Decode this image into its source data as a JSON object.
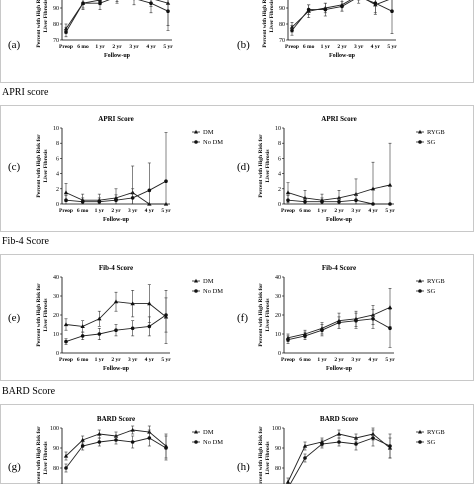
{
  "sections": [
    {
      "label": ""
    },
    {
      "label": "APRI score"
    },
    {
      "label": "Fib-4 Score"
    },
    {
      "label": "BARD Score"
    }
  ],
  "panel_common": {
    "xlabel": "Follow-up",
    "ylabel_line1": "Percent with High Risk for",
    "ylabel_line2": "Liver Fibrosis",
    "categories": [
      "Preop",
      "6 mo",
      "1 yr",
      "2 yr",
      "3 yr",
      "4 yr",
      "5 yr"
    ]
  },
  "chart_data": [
    {
      "letter": "(a)",
      "type": "line",
      "title": "",
      "xlabel": "Follow-up",
      "ylabel": "Percent with High Risk for Liver Fibrosis",
      "categories": [
        "Preop",
        "6 mo",
        "1 yr",
        "2 yr",
        "3 yr",
        "4 yr",
        "5 yr"
      ],
      "ylim": [
        70,
        100
      ],
      "yticks": [
        70,
        80,
        90,
        100
      ],
      "legend": [],
      "series": [
        {
          "marker": "triangle",
          "values": [
            77,
            93,
            95,
            97,
            99,
            96,
            93
          ],
          "err": [
            3,
            4,
            3,
            4,
            3,
            5,
            14
          ]
        },
        {
          "marker": "circle",
          "values": [
            75,
            93,
            93,
            97,
            96,
            93,
            88
          ],
          "err": [
            3,
            3,
            4,
            3,
            4,
            6,
            12
          ]
        }
      ]
    },
    {
      "letter": "(b)",
      "type": "line",
      "title": "",
      "xlabel": "Follow-up",
      "ylabel": "Percent with High Risk for Liver Fibrosis",
      "categories": [
        "Preop",
        "6 mo",
        "1 yr",
        "2 yr",
        "3 yr",
        "4 yr",
        "5 yr"
      ],
      "ylim": [
        70,
        100
      ],
      "yticks": [
        70,
        80,
        90,
        100
      ],
      "legend": [],
      "series": [
        {
          "marker": "triangle",
          "values": [
            78,
            88,
            90,
            92,
            98,
            92,
            96
          ],
          "err": [
            3,
            4,
            3,
            4,
            3,
            6,
            8
          ]
        },
        {
          "marker": "circle",
          "values": [
            76,
            89,
            89,
            91,
            97,
            93,
            88
          ],
          "err": [
            3,
            3,
            4,
            3,
            4,
            6,
            14
          ]
        }
      ]
    },
    {
      "letter": "(c)",
      "type": "line",
      "title": "APRI Score",
      "xlabel": "Follow-up",
      "ylabel": "Percent with High Risk for Liver Fibrosis",
      "categories": [
        "Preop",
        "6 mo",
        "1 yr",
        "2 yr",
        "3 yr",
        "4 yr",
        "5 yr"
      ],
      "ylim": [
        0,
        10
      ],
      "yticks": [
        0,
        2,
        4,
        6,
        8,
        10
      ],
      "legend": [
        "DM",
        "No DM"
      ],
      "series": [
        {
          "name": "DM",
          "marker": "triangle",
          "values": [
            1.5,
            0.5,
            0.5,
            0.8,
            1.5,
            0,
            0
          ],
          "err": [
            1.2,
            0.8,
            0.8,
            1.2,
            3.5,
            0,
            0
          ]
        },
        {
          "name": "No DM",
          "marker": "circle",
          "values": [
            0.5,
            0.3,
            0.3,
            0.5,
            0.8,
            1.8,
            3
          ],
          "err": [
            0.6,
            0.5,
            0.5,
            0.7,
            1.2,
            3.6,
            6.4
          ]
        }
      ]
    },
    {
      "letter": "(d)",
      "type": "line",
      "title": "APRI Score",
      "xlabel": "Follow-up",
      "ylabel": "Percent with High Risk for Liver Fibrosis",
      "categories": [
        "Preop",
        "6 mo",
        "1 yr",
        "2 yr",
        "3 yr",
        "4 yr",
        "5 yr"
      ],
      "ylim": [
        0,
        10
      ],
      "yticks": [
        0,
        2,
        4,
        6,
        8,
        10
      ],
      "legend": [
        "RYGB",
        "SG"
      ],
      "series": [
        {
          "name": "RYGB",
          "marker": "triangle",
          "values": [
            1.5,
            0.8,
            0.5,
            0.8,
            1.3,
            2,
            2.5
          ],
          "err": [
            1.3,
            1,
            0.8,
            1,
            2,
            3.5,
            5.5
          ]
        },
        {
          "name": "SG",
          "marker": "circle",
          "values": [
            0.5,
            0.3,
            0.3,
            0.3,
            0.5,
            0,
            0
          ],
          "err": [
            0.6,
            0.5,
            0.5,
            0.5,
            0.8,
            0,
            0
          ]
        }
      ]
    },
    {
      "letter": "(e)",
      "type": "line",
      "title": "Fib-4 Score",
      "xlabel": "Follow-up",
      "ylabel": "Percent with High Risk for Liver Fibrosis",
      "categories": [
        "Preop",
        "6 mo",
        "1 yr",
        "2 yr",
        "3 yr",
        "4 yr",
        "5 yr"
      ],
      "ylim": [
        0,
        40
      ],
      "yticks": [
        0,
        10,
        20,
        30,
        40
      ],
      "legend": [
        "DM",
        "No DM"
      ],
      "series": [
        {
          "name": "DM",
          "marker": "triangle",
          "values": [
            15,
            14,
            18,
            27,
            26,
            26,
            19
          ],
          "err": [
            3,
            3,
            4,
            5,
            7,
            10,
            14
          ]
        },
        {
          "name": "No DM",
          "marker": "circle",
          "values": [
            6,
            9,
            10,
            12,
            13,
            14,
            20
          ],
          "err": [
            1.5,
            2,
            3,
            3,
            4,
            5,
            9
          ]
        }
      ]
    },
    {
      "letter": "(f)",
      "type": "line",
      "title": "Fib-4 Score",
      "xlabel": "Follow-up",
      "ylabel": "Percent with High Risk for Liver Fibrosis",
      "categories": [
        "Preop",
        "6 mo",
        "1 yr",
        "2 yr",
        "3 yr",
        "4 yr",
        "5 yr"
      ],
      "ylim": [
        0,
        40
      ],
      "yticks": [
        0,
        10,
        20,
        30,
        40
      ],
      "legend": [
        "RYGB",
        "SG"
      ],
      "series": [
        {
          "name": "RYGB",
          "marker": "triangle",
          "values": [
            8,
            10,
            13,
            17,
            18,
            20,
            24
          ],
          "err": [
            2,
            2,
            3,
            4,
            4,
            5,
            10
          ]
        },
        {
          "name": "SG",
          "marker": "circle",
          "values": [
            7,
            9,
            12,
            16,
            17,
            18,
            13
          ],
          "err": [
            2,
            2,
            3,
            3,
            4,
            5,
            10
          ]
        }
      ]
    },
    {
      "letter": "(g)",
      "type": "line",
      "title": "BARD Score",
      "xlabel": "Follow-up",
      "ylabel": "Percent with High Risk for Liver Fibrosis",
      "categories": [
        "Preop",
        "6 mo",
        "1 yr",
        "2 yr",
        "3 yr",
        "4 yr",
        "5 yr"
      ],
      "ylim": [
        70,
        100
      ],
      "yticks": [
        70,
        80,
        90,
        100
      ],
      "legend": [
        "DM",
        "No DM"
      ],
      "series": [
        {
          "name": "DM",
          "marker": "triangle",
          "values": [
            86,
            94,
            97,
            96,
            99,
            98,
            91
          ],
          "err": [
            2,
            2,
            2,
            2,
            2,
            3,
            6
          ]
        },
        {
          "name": "No DM",
          "marker": "circle",
          "values": [
            80,
            91,
            93,
            94,
            93,
            95,
            90
          ],
          "err": [
            2,
            2,
            2,
            2,
            3,
            4,
            6
          ]
        }
      ]
    },
    {
      "letter": "(h)",
      "type": "line",
      "title": "BARD Score",
      "xlabel": "Follow-up",
      "ylabel": "Percent with High Risk for Liver Fibrosis",
      "categories": [
        "Preop",
        "6 mo",
        "1 yr",
        "2 yr",
        "3 yr",
        "4 yr",
        "5 yr"
      ],
      "ylim": [
        70,
        100
      ],
      "yticks": [
        70,
        80,
        90,
        100
      ],
      "legend": [
        "RYGB",
        "SG"
      ],
      "series": [
        {
          "name": "RYGB",
          "marker": "triangle",
          "values": [
            73,
            91,
            93,
            97,
            95,
            97,
            90
          ],
          "err": [
            2,
            2,
            2,
            2,
            2,
            3,
            5
          ]
        },
        {
          "name": "SG",
          "marker": "circle",
          "values": [
            70,
            85,
            92,
            93,
            92,
            95,
            91
          ],
          "err": [
            2,
            2,
            2,
            2,
            3,
            4,
            6
          ]
        }
      ]
    }
  ]
}
